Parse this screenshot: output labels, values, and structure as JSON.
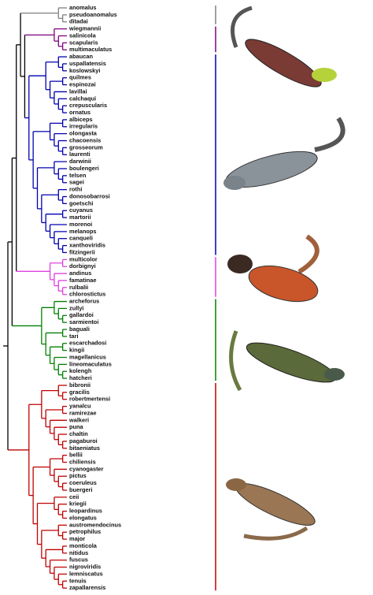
{
  "clades": [
    {
      "taxa": [
        "anomalus",
        "pseudoanomalus",
        "ditadai"
      ]
    },
    {
      "taxa": [
        "wiegmannii",
        "salinicola",
        "scapularis",
        "multimaculatus"
      ]
    },
    {
      "taxa": [
        "abaucan",
        "uspallatensis",
        "koslowskyi",
        "quilmes",
        "espinozai",
        "lavillai",
        "calchaqui",
        "crepuscularis",
        "ornatus",
        "albiceps",
        "irregularis",
        "olongasta",
        "chacoensis",
        "grosseorum",
        "laurenti",
        "darwinii",
        "boulengeri",
        "telsen",
        "sagei",
        "rothi",
        "donosobarrosi",
        "goetschi",
        "cuyanus",
        "martorii",
        "morenoi",
        "melanops",
        "canqueli",
        "xanthoviridis",
        "fitzingerii"
      ]
    },
    {
      "taxa": [
        "multicolor",
        "dorbignyi",
        "andinus",
        "famatinae",
        "rulbalii",
        "chlorostictus"
      ]
    },
    {
      "taxa": [
        "archeforus",
        "zullyi",
        "gallardoi",
        "sarmientoi",
        "baguali",
        "tari",
        "escarchadosi",
        "kingii",
        "magellanicus",
        "lineomaculatus",
        "kolengh",
        "hatcheri"
      ]
    },
    {
      "taxa": [
        "bibronii",
        "gracilis",
        "robertmertensi",
        "yanalcu",
        "ramirezae",
        "walkeri",
        "puna",
        "chaltin",
        "pagaburoi",
        "bitaeniatus",
        "bellii",
        "chiliensis",
        "cyanogaster",
        "pictus",
        "coeruleus",
        "buergeri",
        "ceii",
        "kriegii",
        "leopardinus",
        "elongatus",
        "austromendocinus",
        "petrophilus",
        "major",
        "monticola",
        "nitidus",
        "fuscus",
        "nigroviridis",
        "lemniscatus",
        "tenuis",
        "zapallarensis"
      ]
    }
  ]
}
